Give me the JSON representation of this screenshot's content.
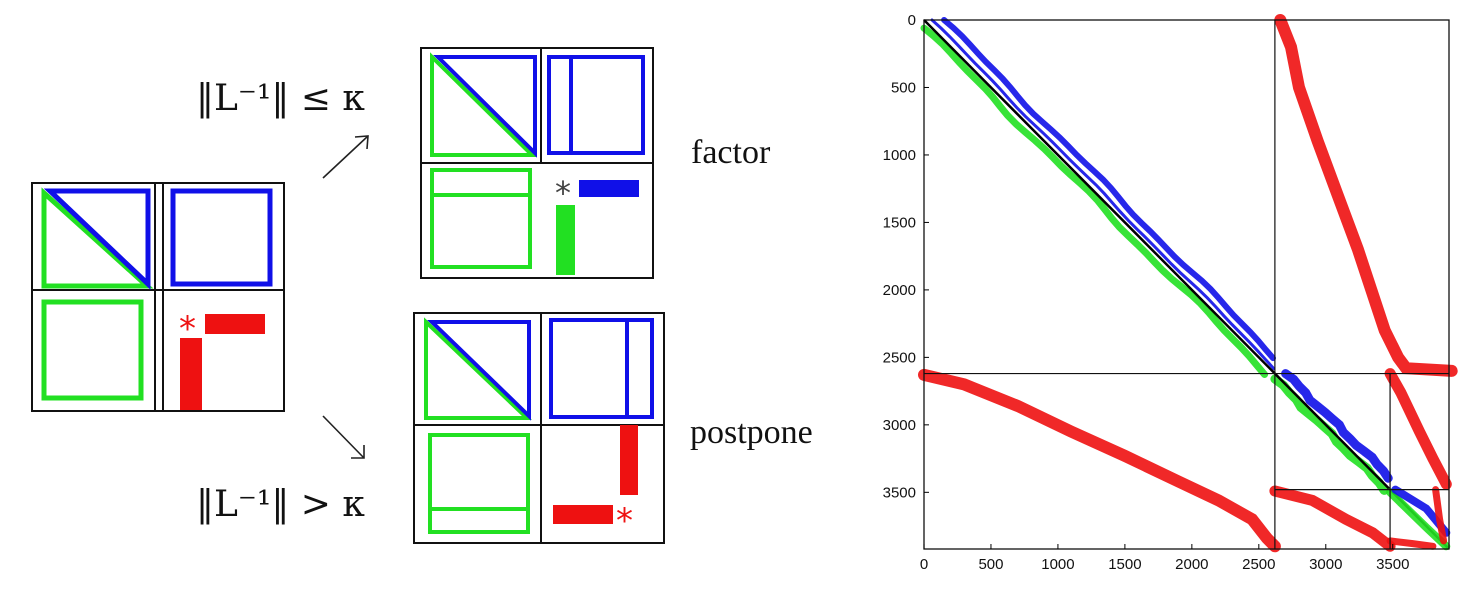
{
  "labels": {
    "top_condition": "‖L⁻¹‖ ≤ κ",
    "bottom_condition": "‖L⁻¹‖ > κ",
    "factor": "factor",
    "postpone": "postpone",
    "pivot_symbol": "*"
  },
  "colors": {
    "lower": "#22e022",
    "upper": "#1010e8",
    "schur": "#ee1111",
    "frame": "#111111"
  },
  "plot": {
    "x_ticks": [
      "0",
      "500",
      "1000",
      "1500",
      "2000",
      "2500",
      "3000",
      "3500"
    ],
    "y_ticks": [
      "0",
      "500",
      "1000",
      "1500",
      "2000",
      "2500",
      "3000",
      "3500"
    ],
    "range": [
      0,
      3920
    ],
    "block_boundaries": [
      2620,
      3480
    ]
  }
}
